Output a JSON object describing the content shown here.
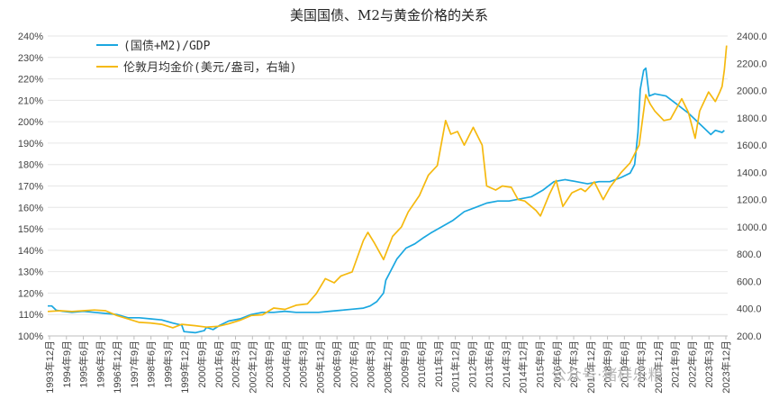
{
  "chart_data": {
    "type": "line",
    "title": "美国国债、M2与黄金价格的关系",
    "x_labels": [
      "1993年12月",
      "1994年9月",
      "1995年6月",
      "1996年3月",
      "1996年12月",
      "1997年9月",
      "1998年6月",
      "1999年3月",
      "1999年12月",
      "2000年9月",
      "2001年6月",
      "2002年3月",
      "2002年12月",
      "2003年9月",
      "2004年6月",
      "2005年3月",
      "2005年12月",
      "2006年9月",
      "2007年6月",
      "2008年3月",
      "2008年12月",
      "2009年9月",
      "2010年6月",
      "2011年3月",
      "2011年12月",
      "2012年9月",
      "2013年6月",
      "2014年3月",
      "2014年12月",
      "2015年9月",
      "2016年6月",
      "2017年3月",
      "2017年12月",
      "2018年9月",
      "2019年6月",
      "2020年3月",
      "2020年12月",
      "2021年9月",
      "2022年6月",
      "2023年3月",
      "2023年12月"
    ],
    "left_axis": {
      "min": 100,
      "max": 240,
      "ticks": [
        "100%",
        "110%",
        "120%",
        "130%",
        "140%",
        "150%",
        "160%",
        "170%",
        "180%",
        "190%",
        "200%",
        "210%",
        "220%",
        "230%",
        "240%"
      ]
    },
    "right_axis": {
      "min": 200,
      "max": 2400,
      "ticks": [
        "200.0",
        "400.0",
        "600.0",
        "800.0",
        "1000.0",
        "1200.0",
        "1400.0",
        "1600.0",
        "1800.0",
        "2000.0",
        "2200.0",
        "2400.0"
      ]
    },
    "series": [
      {
        "name": "(国债+M2)/GDP",
        "axis": "left",
        "color": "#1aa7e0",
        "points": [
          [
            1993.92,
            114
          ],
          [
            1994.1,
            114
          ],
          [
            1994.3,
            112
          ],
          [
            1994.6,
            111.5
          ],
          [
            1995.0,
            111
          ],
          [
            1995.5,
            111.5
          ],
          [
            1996.0,
            111
          ],
          [
            1996.5,
            110.5
          ],
          [
            1997.0,
            110
          ],
          [
            1997.5,
            108.5
          ],
          [
            1998.0,
            108.5
          ],
          [
            1998.5,
            108
          ],
          [
            1999.0,
            107.5
          ],
          [
            1999.5,
            106
          ],
          [
            1999.9,
            105
          ],
          [
            2000.0,
            102
          ],
          [
            2000.5,
            101.5
          ],
          [
            2000.9,
            102.5
          ],
          [
            2001.0,
            104
          ],
          [
            2001.3,
            103
          ],
          [
            2001.6,
            105
          ],
          [
            2002.0,
            107
          ],
          [
            2002.5,
            108
          ],
          [
            2003.0,
            110
          ],
          [
            2003.5,
            111
          ],
          [
            2004.0,
            111
          ],
          [
            2004.5,
            111.5
          ],
          [
            2005.0,
            111
          ],
          [
            2005.5,
            111
          ],
          [
            2006.0,
            111
          ],
          [
            2006.5,
            111.5
          ],
          [
            2007.0,
            112
          ],
          [
            2007.5,
            112.5
          ],
          [
            2008.0,
            113
          ],
          [
            2008.3,
            114
          ],
          [
            2008.6,
            116
          ],
          [
            2008.9,
            120
          ],
          [
            2009.0,
            126
          ],
          [
            2009.2,
            130
          ],
          [
            2009.5,
            136
          ],
          [
            2009.9,
            141
          ],
          [
            2010.3,
            143
          ],
          [
            2010.7,
            146
          ],
          [
            2011.0,
            148
          ],
          [
            2011.5,
            151
          ],
          [
            2012.0,
            154
          ],
          [
            2012.5,
            158
          ],
          [
            2013.0,
            160
          ],
          [
            2013.5,
            162
          ],
          [
            2014.0,
            163
          ],
          [
            2014.5,
            163
          ],
          [
            2015.0,
            164
          ],
          [
            2015.5,
            165
          ],
          [
            2016.0,
            168
          ],
          [
            2016.5,
            172
          ],
          [
            2017.0,
            173
          ],
          [
            2017.5,
            172
          ],
          [
            2018.0,
            171
          ],
          [
            2018.5,
            172
          ],
          [
            2019.0,
            172
          ],
          [
            2019.5,
            174
          ],
          [
            2019.9,
            176
          ],
          [
            2020.1,
            180
          ],
          [
            2020.25,
            195
          ],
          [
            2020.35,
            215
          ],
          [
            2020.5,
            224
          ],
          [
            2020.6,
            225
          ],
          [
            2020.75,
            212
          ],
          [
            2021.0,
            213
          ],
          [
            2021.5,
            212
          ],
          [
            2022.0,
            208
          ],
          [
            2022.5,
            204
          ],
          [
            2022.9,
            200
          ],
          [
            2023.2,
            197
          ],
          [
            2023.5,
            194
          ],
          [
            2023.7,
            196
          ],
          [
            2024.0,
            195
          ],
          [
            2024.1,
            196
          ]
        ]
      },
      {
        "name": "伦敦月均金价(美元/盎司，右轴)",
        "axis": "right",
        "color": "#f5b90f",
        "points": [
          [
            1993.92,
            380
          ],
          [
            1994.5,
            385
          ],
          [
            1995.0,
            380
          ],
          [
            1995.5,
            385
          ],
          [
            1996.0,
            390
          ],
          [
            1996.5,
            385
          ],
          [
            1997.0,
            350
          ],
          [
            1997.5,
            325
          ],
          [
            1998.0,
            300
          ],
          [
            1998.5,
            295
          ],
          [
            1999.0,
            285
          ],
          [
            1999.5,
            260
          ],
          [
            1999.9,
            285
          ],
          [
            2000.5,
            275
          ],
          [
            2001.0,
            265
          ],
          [
            2001.5,
            270
          ],
          [
            2002.0,
            290
          ],
          [
            2002.5,
            315
          ],
          [
            2003.0,
            350
          ],
          [
            2003.5,
            355
          ],
          [
            2004.0,
            405
          ],
          [
            2004.5,
            395
          ],
          [
            2005.0,
            425
          ],
          [
            2005.5,
            435
          ],
          [
            2005.9,
            510
          ],
          [
            2006.3,
            620
          ],
          [
            2006.7,
            590
          ],
          [
            2007.0,
            640
          ],
          [
            2007.5,
            670
          ],
          [
            2008.0,
            900
          ],
          [
            2008.2,
            960
          ],
          [
            2008.5,
            880
          ],
          [
            2008.9,
            760
          ],
          [
            2009.3,
            930
          ],
          [
            2009.7,
            1000
          ],
          [
            2010.0,
            1110
          ],
          [
            2010.5,
            1230
          ],
          [
            2010.9,
            1380
          ],
          [
            2011.3,
            1450
          ],
          [
            2011.67,
            1780
          ],
          [
            2011.9,
            1680
          ],
          [
            2012.2,
            1700
          ],
          [
            2012.5,
            1600
          ],
          [
            2012.9,
            1730
          ],
          [
            2013.3,
            1600
          ],
          [
            2013.5,
            1300
          ],
          [
            2013.9,
            1270
          ],
          [
            2014.2,
            1300
          ],
          [
            2014.6,
            1290
          ],
          [
            2014.9,
            1200
          ],
          [
            2015.2,
            1190
          ],
          [
            2015.7,
            1120
          ],
          [
            2015.9,
            1080
          ],
          [
            2016.3,
            1240
          ],
          [
            2016.6,
            1340
          ],
          [
            2016.9,
            1150
          ],
          [
            2017.3,
            1250
          ],
          [
            2017.7,
            1280
          ],
          [
            2017.9,
            1260
          ],
          [
            2018.3,
            1330
          ],
          [
            2018.7,
            1200
          ],
          [
            2019.0,
            1290
          ],
          [
            2019.5,
            1400
          ],
          [
            2019.9,
            1470
          ],
          [
            2020.3,
            1600
          ],
          [
            2020.6,
            1970
          ],
          [
            2020.8,
            1900
          ],
          [
            2021.0,
            1850
          ],
          [
            2021.4,
            1780
          ],
          [
            2021.7,
            1790
          ],
          [
            2022.2,
            1940
          ],
          [
            2022.5,
            1840
          ],
          [
            2022.8,
            1650
          ],
          [
            2023.0,
            1850
          ],
          [
            2023.4,
            1990
          ],
          [
            2023.7,
            1920
          ],
          [
            2023.9,
            1990
          ],
          [
            2024.0,
            2030
          ],
          [
            2024.1,
            2150
          ],
          [
            2024.2,
            2330
          ]
        ]
      }
    ]
  },
  "legend": [
    {
      "label": "(国债+M2)/GDP",
      "color": "#1aa7e0"
    },
    {
      "label": "伦敦月均金价(美元/盎司，右轴)",
      "color": "#f5b90f"
    }
  ],
  "watermark": "公众号·猪样乐粮"
}
